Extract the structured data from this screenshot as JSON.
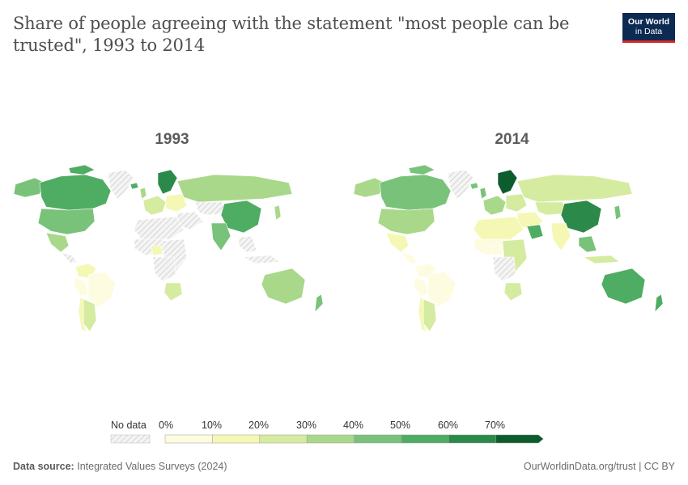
{
  "header": {
    "title": "Share of people agreeing with the statement \"most people can be trusted\", 1993 to 2014",
    "logo_line1": "Our World",
    "logo_line2": "in Data"
  },
  "maps": {
    "left_year": "1993",
    "right_year": "2014"
  },
  "legend": {
    "no_data_label": "No data",
    "ticks": [
      "0%",
      "10%",
      "20%",
      "30%",
      "40%",
      "50%",
      "60%",
      "70%"
    ],
    "colors": [
      "#fdfce0",
      "#f4f8b4",
      "#d5eba0",
      "#a9d88a",
      "#79c27a",
      "#4fac63",
      "#2b8a49",
      "#0d5c2e"
    ],
    "no_data_color": "#e9e9e9"
  },
  "footer": {
    "source_label": "Data source:",
    "source_value": "Integrated Values Surveys (2024)",
    "credit": "OurWorldinData.org/trust | CC BY"
  }
}
